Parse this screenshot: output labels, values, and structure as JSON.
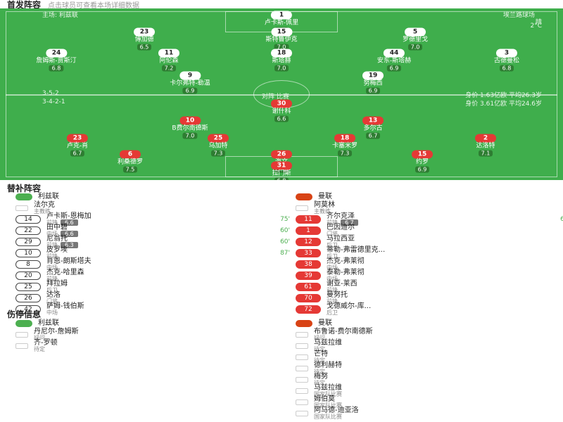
{
  "header": {
    "title": "首发阵容",
    "subtitle": "点击球员可查看本场详细数据"
  },
  "pitch": {
    "home_label": "主场: 利兹联",
    "venue": "埃兰路球场",
    "weather": "晴",
    "temperature": "2°C",
    "center_label": "对阵 比赛",
    "home_formation": "3-5-2",
    "away_formation": "3-4-2-1",
    "home_stats": "身价 1.63亿欧  平均26.3岁",
    "away_stats": "身价 3.61亿欧  平均24.6岁",
    "home_players": [
      {
        "number": "1",
        "name": "卢卡斯-佩里",
        "rating": "6.6"
      },
      {
        "number": "23",
        "name": "博加德",
        "rating": "6.5"
      },
      {
        "number": "15",
        "name": "斯特鲁伊克",
        "rating": "7.0"
      },
      {
        "number": "5",
        "name": "罗德里戈",
        "rating": "7.0"
      },
      {
        "number": "24",
        "name": "詹姆斯-贾斯汀",
        "rating": "6.8"
      },
      {
        "number": "11",
        "name": "阿伦森",
        "rating": "7.2"
      },
      {
        "number": "18",
        "name": "斯塔赫",
        "rating": "7.0"
      },
      {
        "number": "44",
        "name": "安东-斯塔赫",
        "rating": "6.9"
      },
      {
        "number": "3",
        "name": "古德曼松",
        "rating": "6.8"
      },
      {
        "number": "9",
        "name": "卡尔弗特-勒温",
        "rating": "6.9"
      },
      {
        "number": "19",
        "name": "努梅西",
        "rating": "6.9"
      }
    ],
    "away_players": [
      {
        "number": "30",
        "name": "谢什科",
        "rating": "6.6"
      },
      {
        "number": "10",
        "name": "B费尔南德斯",
        "rating": "7.0"
      },
      {
        "number": "13",
        "name": "多尔古",
        "rating": "6.7"
      },
      {
        "number": "23",
        "name": "卢克-肖",
        "rating": "6.7"
      },
      {
        "number": "25",
        "name": "乌加特",
        "rating": "7.3"
      },
      {
        "number": "18",
        "name": "卡塞米罗",
        "rating": "7.3"
      },
      {
        "number": "2",
        "name": "达洛特",
        "rating": "7.1"
      },
      {
        "number": "6",
        "name": "利桑德罗",
        "rating": "7.5"
      },
      {
        "number": "26",
        "name": "海文",
        "rating": "7.1"
      },
      {
        "number": "15",
        "name": "约罗",
        "rating": "6.9"
      },
      {
        "number": "31",
        "name": "拉门斯",
        "rating": "6.8"
      }
    ]
  },
  "bench": {
    "title": "替补阵容",
    "home_team": "利兹联",
    "away_team": "曼联",
    "home_coach": {
      "name": "法尔克",
      "role": "主教练"
    },
    "away_coach": {
      "name": "阿莫林",
      "role": "主教练"
    },
    "home": [
      {
        "number": "14",
        "name": "卢卡斯-恩梅加",
        "position": "前锋",
        "rating": "6.6",
        "minute": "75'"
      },
      {
        "number": "22",
        "name": "田中碧",
        "position": "中场",
        "rating": "6.6",
        "minute": "60'"
      },
      {
        "number": "29",
        "name": "尼翁托",
        "position": "前锋",
        "rating": "6.3",
        "minute": "60'"
      },
      {
        "number": "10",
        "name": "皮罗埃",
        "position": "前锋",
        "rating": "",
        "minute": "87'"
      },
      {
        "number": "8",
        "name": "肖恩-朗斯塔夫",
        "position": "中场",
        "rating": "",
        "minute": ""
      },
      {
        "number": "20",
        "name": "杰克-哈里森",
        "position": "前锋",
        "rating": "",
        "minute": ""
      },
      {
        "number": "25",
        "name": "拜拉姆",
        "position": "后卫",
        "rating": "",
        "minute": ""
      },
      {
        "number": "26",
        "name": "达洛",
        "position": "门将",
        "rating": "",
        "minute": ""
      },
      {
        "number": "42",
        "name": "萨姆-钱伯斯",
        "position": "中场",
        "rating": "",
        "minute": ""
      }
    ],
    "away": [
      {
        "number": "11",
        "name": "齐尔克泽",
        "position": "前锋",
        "rating": "6.7",
        "minute": "63'"
      },
      {
        "number": "1",
        "name": "巴因迪尔",
        "position": "门将",
        "rating": "",
        "minute": ""
      },
      {
        "number": "12",
        "name": "马拉西亚",
        "position": "后卫",
        "rating": "",
        "minute": ""
      },
      {
        "number": "33",
        "name": "蒂勒-弗雷德里克...",
        "position": "后卫",
        "rating": "",
        "minute": ""
      },
      {
        "number": "38",
        "name": "杰克-弗莱彻",
        "position": "中场",
        "rating": "",
        "minute": ""
      },
      {
        "number": "39",
        "name": "泰勒-弗莱彻",
        "position": "中场",
        "rating": "",
        "minute": ""
      },
      {
        "number": "61",
        "name": "谢亚-莱西",
        "position": "前锋",
        "rating": "",
        "minute": ""
      },
      {
        "number": "70",
        "name": "曼努托",
        "position": "前锋",
        "rating": "",
        "minute": ""
      },
      {
        "number": "72",
        "name": "戈德威尔-库...",
        "position": "后卫",
        "rating": "",
        "minute": ""
      }
    ]
  },
  "injuries": {
    "title": "伤停信息",
    "home_team": "利兹联",
    "away_team": "曼联",
    "home": [
      {
        "name": "丹尼尔-詹姆斯",
        "status": "疑问"
      },
      {
        "name": "齐-罗顿",
        "status": "待定"
      }
    ],
    "away": [
      {
        "name": "布鲁诺-费尔南德斯",
        "status": "疑问"
      },
      {
        "name": "马兹拉维",
        "status": "待定"
      },
      {
        "name": "芒特",
        "status": "待定"
      },
      {
        "name": "德利赫特",
        "status": "待定"
      },
      {
        "name": "梅努",
        "status": "待定"
      },
      {
        "name": "马兹拉维",
        "status": "国家队比赛"
      },
      {
        "name": "姆伯莫",
        "status": "国家队比赛"
      },
      {
        "name": "阿马德-迪亚洛",
        "status": "国家队比赛"
      }
    ]
  }
}
